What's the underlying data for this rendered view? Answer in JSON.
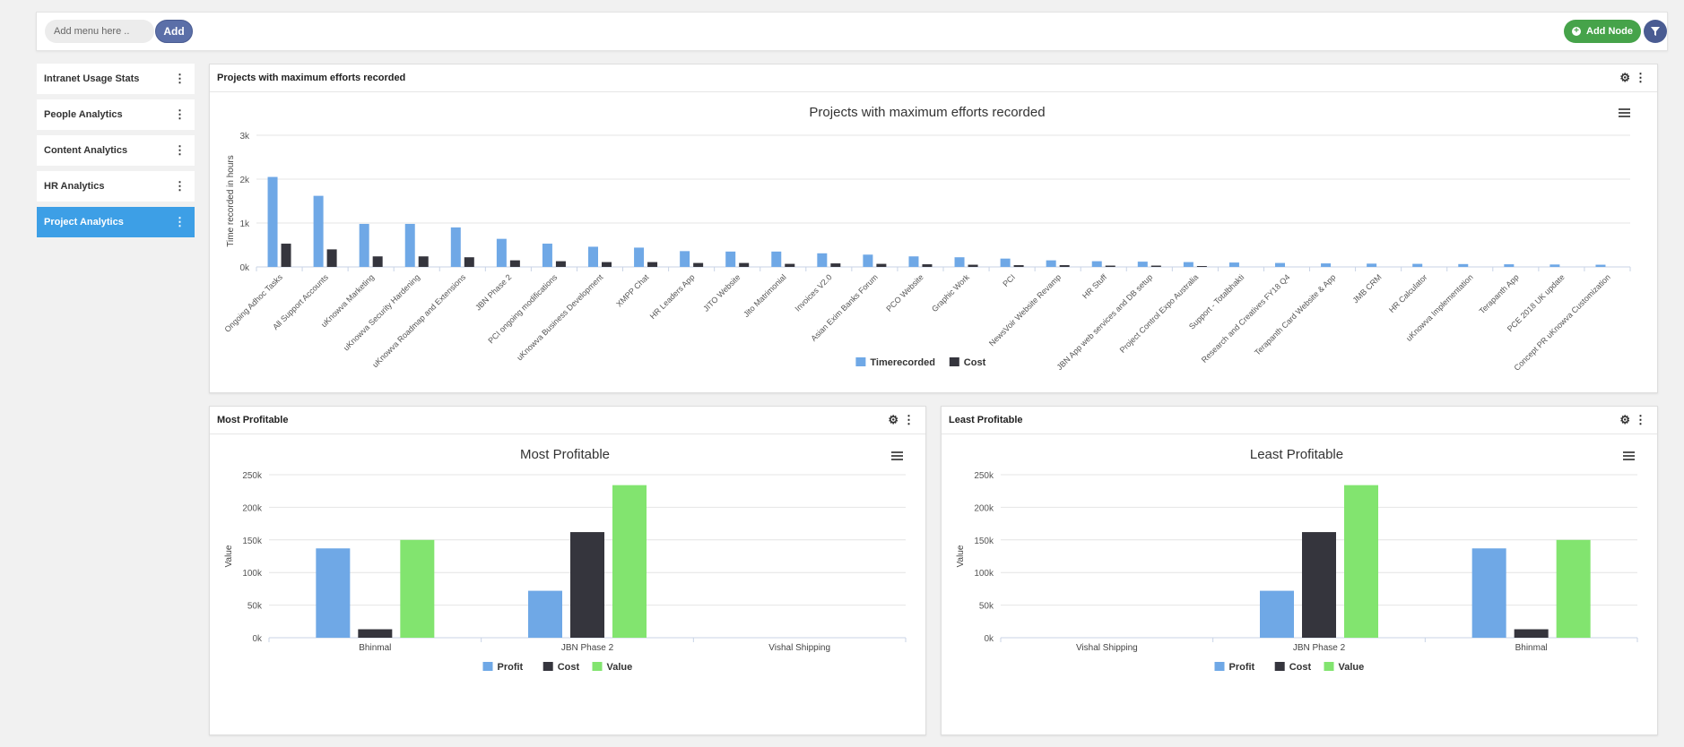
{
  "topbar": {
    "menu_placeholder": "Add menu here ..",
    "add_label": "Add",
    "add_node_label": "Add Node"
  },
  "sidebar": {
    "items": [
      {
        "label": "Intranet Usage Stats"
      },
      {
        "label": "People Analytics"
      },
      {
        "label": "Content Analytics"
      },
      {
        "label": "HR Analytics"
      },
      {
        "label": "Project Analytics"
      }
    ]
  },
  "panels": {
    "efforts": {
      "header": "Projects with maximum efforts recorded"
    },
    "most": {
      "header": "Most Profitable"
    },
    "least": {
      "header": "Least Profitable"
    }
  },
  "colors": {
    "blue": "#6fa8e6",
    "dark": "#35353d",
    "green": "#82e46f",
    "active": "#3d9fe6"
  },
  "chart_data": [
    {
      "type": "bar",
      "title": "Projects with maximum efforts recorded",
      "ylabel": "Time recorded in hours",
      "ylim": [
        0,
        3000
      ],
      "yticks": [
        "0k",
        "1k",
        "2k",
        "3k"
      ],
      "categories": [
        "Ongoing Adhoc Tasks",
        "All Support Accounts",
        "uKnowva Marketing",
        "uKnowva Security Hardening",
        "uKnowva Roadmap and Extensions",
        "JBN Phase 2",
        "PCI ongoing modifications",
        "uKnowva Business Development",
        "XMPP Chat",
        "HR Leaders App",
        "JITO Website",
        "Jito Matrimonial",
        "Invoices V2.0",
        "Asian Exim Banks Forum",
        "PCO Website",
        "Graphic Work",
        "PCI",
        "NewsVoir Website Revamp",
        "HR Stuff",
        "JBN App web services and DB setup",
        "Project Control Expo Australia",
        "Support - Totalbhakti",
        "Research and Creatives FY18 Q4",
        "Terapanth Card Website & App",
        "JMB CRM",
        "HR Calculator",
        "uKnowva Implementation",
        "Terapanth App",
        "PCE 2018 UK update",
        "Concept PR uKnowva Customization"
      ],
      "series": [
        {
          "name": "Timerecorded",
          "values": [
            2050,
            1620,
            980,
            980,
            900,
            640,
            530,
            460,
            440,
            360,
            350,
            350,
            310,
            280,
            240,
            220,
            190,
            150,
            130,
            120,
            110,
            100,
            90,
            80,
            75,
            70,
            65,
            60,
            55,
            50
          ]
        },
        {
          "name": "Cost",
          "values": [
            530,
            400,
            240,
            240,
            220,
            150,
            130,
            110,
            110,
            90,
            90,
            70,
            80,
            70,
            60,
            50,
            40,
            40,
            30,
            30,
            20,
            0,
            0,
            0,
            0,
            0,
            0,
            0,
            0,
            0
          ]
        }
      ],
      "legend": "bottom-center"
    },
    {
      "type": "bar",
      "title": "Most Profitable",
      "ylabel": "Value",
      "ylim": [
        0,
        250000
      ],
      "yticks": [
        "0k",
        "50k",
        "100k",
        "150k",
        "200k",
        "250k"
      ],
      "categories": [
        "Bhinmal",
        "JBN Phase 2",
        "Vishal Shipping"
      ],
      "series": [
        {
          "name": "Profit",
          "values": [
            137000,
            72000,
            0
          ]
        },
        {
          "name": "Cost",
          "values": [
            13000,
            162000,
            0
          ]
        },
        {
          "name": "Value",
          "values": [
            150000,
            234000,
            0
          ]
        }
      ],
      "legend": "bottom-center"
    },
    {
      "type": "bar",
      "title": "Least Profitable",
      "ylabel": "Value",
      "ylim": [
        0,
        250000
      ],
      "yticks": [
        "0k",
        "50k",
        "100k",
        "150k",
        "200k",
        "250k"
      ],
      "categories": [
        "Vishal Shipping",
        "JBN Phase 2",
        "Bhinmal"
      ],
      "series": [
        {
          "name": "Profit",
          "values": [
            0,
            72000,
            137000
          ]
        },
        {
          "name": "Cost",
          "values": [
            0,
            162000,
            13000
          ]
        },
        {
          "name": "Value",
          "values": [
            0,
            234000,
            150000
          ]
        }
      ],
      "legend": "bottom-center"
    }
  ]
}
